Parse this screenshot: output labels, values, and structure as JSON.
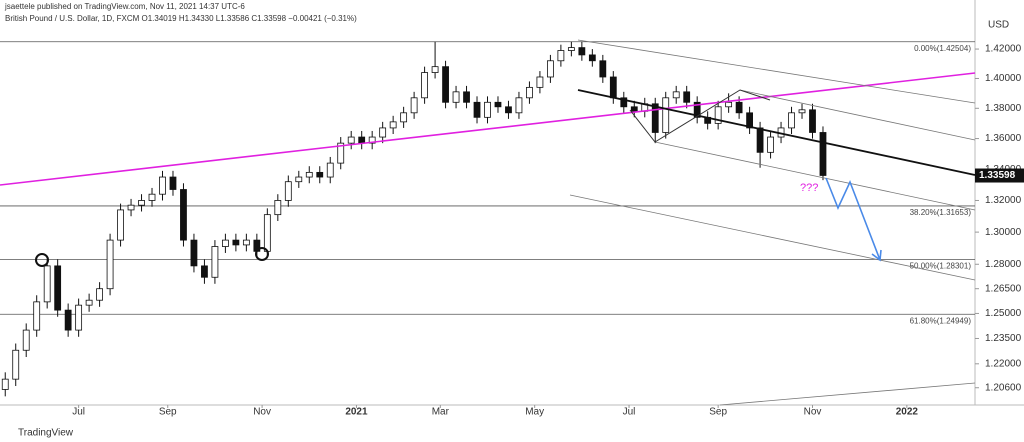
{
  "header": {
    "author_line": "jsaettele published on TradingView.com, Nov 11, 2021 14:37 UTC-6",
    "symbol_line": "British Pound / U.S. Dollar, 1D, FXCM  O1.34019 H1.34330 L1.33586 C1.33598 −0.00421 (−0.31%)",
    "footer": "TradingView"
  },
  "chart_data": {
    "type": "candlestick",
    "log_scale": true,
    "currency": "USD",
    "ylim": [
      1.196,
      1.454
    ],
    "yticks": [
      {
        "value": 1.42,
        "label": "1.42000"
      },
      {
        "value": 1.4,
        "label": "1.40000"
      },
      {
        "value": 1.38,
        "label": "1.38000"
      },
      {
        "value": 1.36,
        "label": "1.36000"
      },
      {
        "value": 1.34,
        "label": "1.34000"
      },
      {
        "value": 1.32,
        "label": "1.32000"
      },
      {
        "value": 1.3,
        "label": "1.30000"
      },
      {
        "value": 1.28,
        "label": "1.28000"
      },
      {
        "value": 1.265,
        "label": "1.26500"
      },
      {
        "value": 1.25,
        "label": "1.25000"
      },
      {
        "value": 1.235,
        "label": "1.23500"
      },
      {
        "value": 1.22,
        "label": "1.22000"
      },
      {
        "value": 1.206,
        "label": "1.20600"
      }
    ],
    "xlim": [
      -0.5,
      92.5
    ],
    "xticks": [
      {
        "value": 7,
        "label": "Jul"
      },
      {
        "value": 15.5,
        "label": "Sep"
      },
      {
        "value": 24.5,
        "label": "Nov"
      },
      {
        "value": 33.5,
        "label": "2021"
      },
      {
        "value": 41.5,
        "label": "Mar"
      },
      {
        "value": 50.5,
        "label": "May"
      },
      {
        "value": 59.5,
        "label": "Jul"
      },
      {
        "value": 68,
        "label": "Sep"
      },
      {
        "value": 77,
        "label": "Nov"
      },
      {
        "value": 86,
        "label": "2022"
      }
    ],
    "open": [
      1.205,
      1.211,
      1.228,
      1.24,
      1.257,
      1.279,
      1.252,
      1.24,
      1.255,
      1.258,
      1.265,
      1.295,
      1.314,
      1.317,
      1.32,
      1.324,
      1.335,
      1.327,
      1.295,
      1.279,
      1.272,
      1.291,
      1.295,
      1.292,
      1.295,
      1.288,
      1.311,
      1.32,
      1.332,
      1.335,
      1.338,
      1.335,
      1.344,
      1.357,
      1.361,
      1.357,
      1.361,
      1.367,
      1.371,
      1.377,
      1.387,
      1.404,
      1.408,
      1.384,
      1.391,
      1.384,
      1.374,
      1.384,
      1.381,
      1.377,
      1.387,
      1.394,
      1.401,
      1.412,
      1.419,
      1.421,
      1.416,
      1.412,
      1.401,
      1.387,
      1.381,
      1.378,
      1.383,
      1.364,
      1.387,
      1.391,
      1.384,
      1.374,
      1.37,
      1.381,
      1.384,
      1.377,
      1.367,
      1.351,
      1.361,
      1.367,
      1.377,
      1.379,
      1.364
    ],
    "high": [
      1.215,
      1.232,
      1.244,
      1.261,
      1.283,
      1.283,
      1.256,
      1.259,
      1.262,
      1.269,
      1.299,
      1.318,
      1.321,
      1.324,
      1.328,
      1.339,
      1.339,
      1.331,
      1.299,
      1.283,
      1.295,
      1.299,
      1.299,
      1.299,
      1.299,
      1.315,
      1.324,
      1.336,
      1.339,
      1.342,
      1.342,
      1.348,
      1.361,
      1.365,
      1.365,
      1.365,
      1.371,
      1.375,
      1.381,
      1.391,
      1.408,
      1.425,
      1.412,
      1.395,
      1.395,
      1.388,
      1.388,
      1.388,
      1.385,
      1.391,
      1.398,
      1.405,
      1.416,
      1.423,
      1.425,
      1.425,
      1.42,
      1.416,
      1.405,
      1.391,
      1.385,
      1.387,
      1.387,
      1.391,
      1.395,
      1.395,
      1.388,
      1.378,
      1.385,
      1.39,
      1.388,
      1.381,
      1.371,
      1.365,
      1.371,
      1.381,
      1.383,
      1.383,
      1.368
    ],
    "low": [
      1.201,
      1.207,
      1.224,
      1.236,
      1.253,
      1.248,
      1.236,
      1.236,
      1.251,
      1.254,
      1.261,
      1.291,
      1.31,
      1.313,
      1.316,
      1.32,
      1.323,
      1.291,
      1.275,
      1.268,
      1.268,
      1.287,
      1.288,
      1.288,
      1.284,
      1.284,
      1.307,
      1.316,
      1.328,
      1.331,
      1.331,
      1.331,
      1.34,
      1.353,
      1.353,
      1.353,
      1.357,
      1.363,
      1.367,
      1.373,
      1.383,
      1.4,
      1.38,
      1.38,
      1.38,
      1.37,
      1.37,
      1.377,
      1.373,
      1.373,
      1.383,
      1.39,
      1.397,
      1.408,
      1.415,
      1.412,
      1.408,
      1.397,
      1.383,
      1.377,
      1.374,
      1.374,
      1.357,
      1.36,
      1.383,
      1.38,
      1.37,
      1.366,
      1.366,
      1.377,
      1.373,
      1.363,
      1.341,
      1.347,
      1.357,
      1.363,
      1.373,
      1.36,
      1.333
    ],
    "close": [
      1.211,
      1.228,
      1.24,
      1.257,
      1.279,
      1.252,
      1.24,
      1.255,
      1.258,
      1.265,
      1.295,
      1.314,
      1.317,
      1.32,
      1.324,
      1.335,
      1.327,
      1.295,
      1.279,
      1.272,
      1.291,
      1.295,
      1.292,
      1.295,
      1.288,
      1.311,
      1.32,
      1.332,
      1.335,
      1.338,
      1.335,
      1.344,
      1.357,
      1.361,
      1.357,
      1.361,
      1.367,
      1.371,
      1.377,
      1.387,
      1.404,
      1.408,
      1.384,
      1.391,
      1.384,
      1.374,
      1.384,
      1.381,
      1.377,
      1.387,
      1.394,
      1.401,
      1.412,
      1.419,
      1.421,
      1.416,
      1.412,
      1.401,
      1.387,
      1.381,
      1.378,
      1.383,
      1.364,
      1.387,
      1.391,
      1.384,
      1.374,
      1.37,
      1.381,
      1.384,
      1.377,
      1.367,
      1.351,
      1.361,
      1.367,
      1.377,
      1.379,
      1.364,
      1.336
    ],
    "last_price": {
      "value": 1.33598,
      "label": "1.33598"
    },
    "fibs": [
      {
        "value": 1.42504,
        "label": "0.00%(1.42504)"
      },
      {
        "value": 1.31653,
        "label": "38.20%(1.31653)"
      },
      {
        "value": 1.28301,
        "label": "50.00%(1.28301)"
      },
      {
        "value": 1.24949,
        "label": "61.80%(1.24949)"
      }
    ],
    "annotation": "???"
  }
}
